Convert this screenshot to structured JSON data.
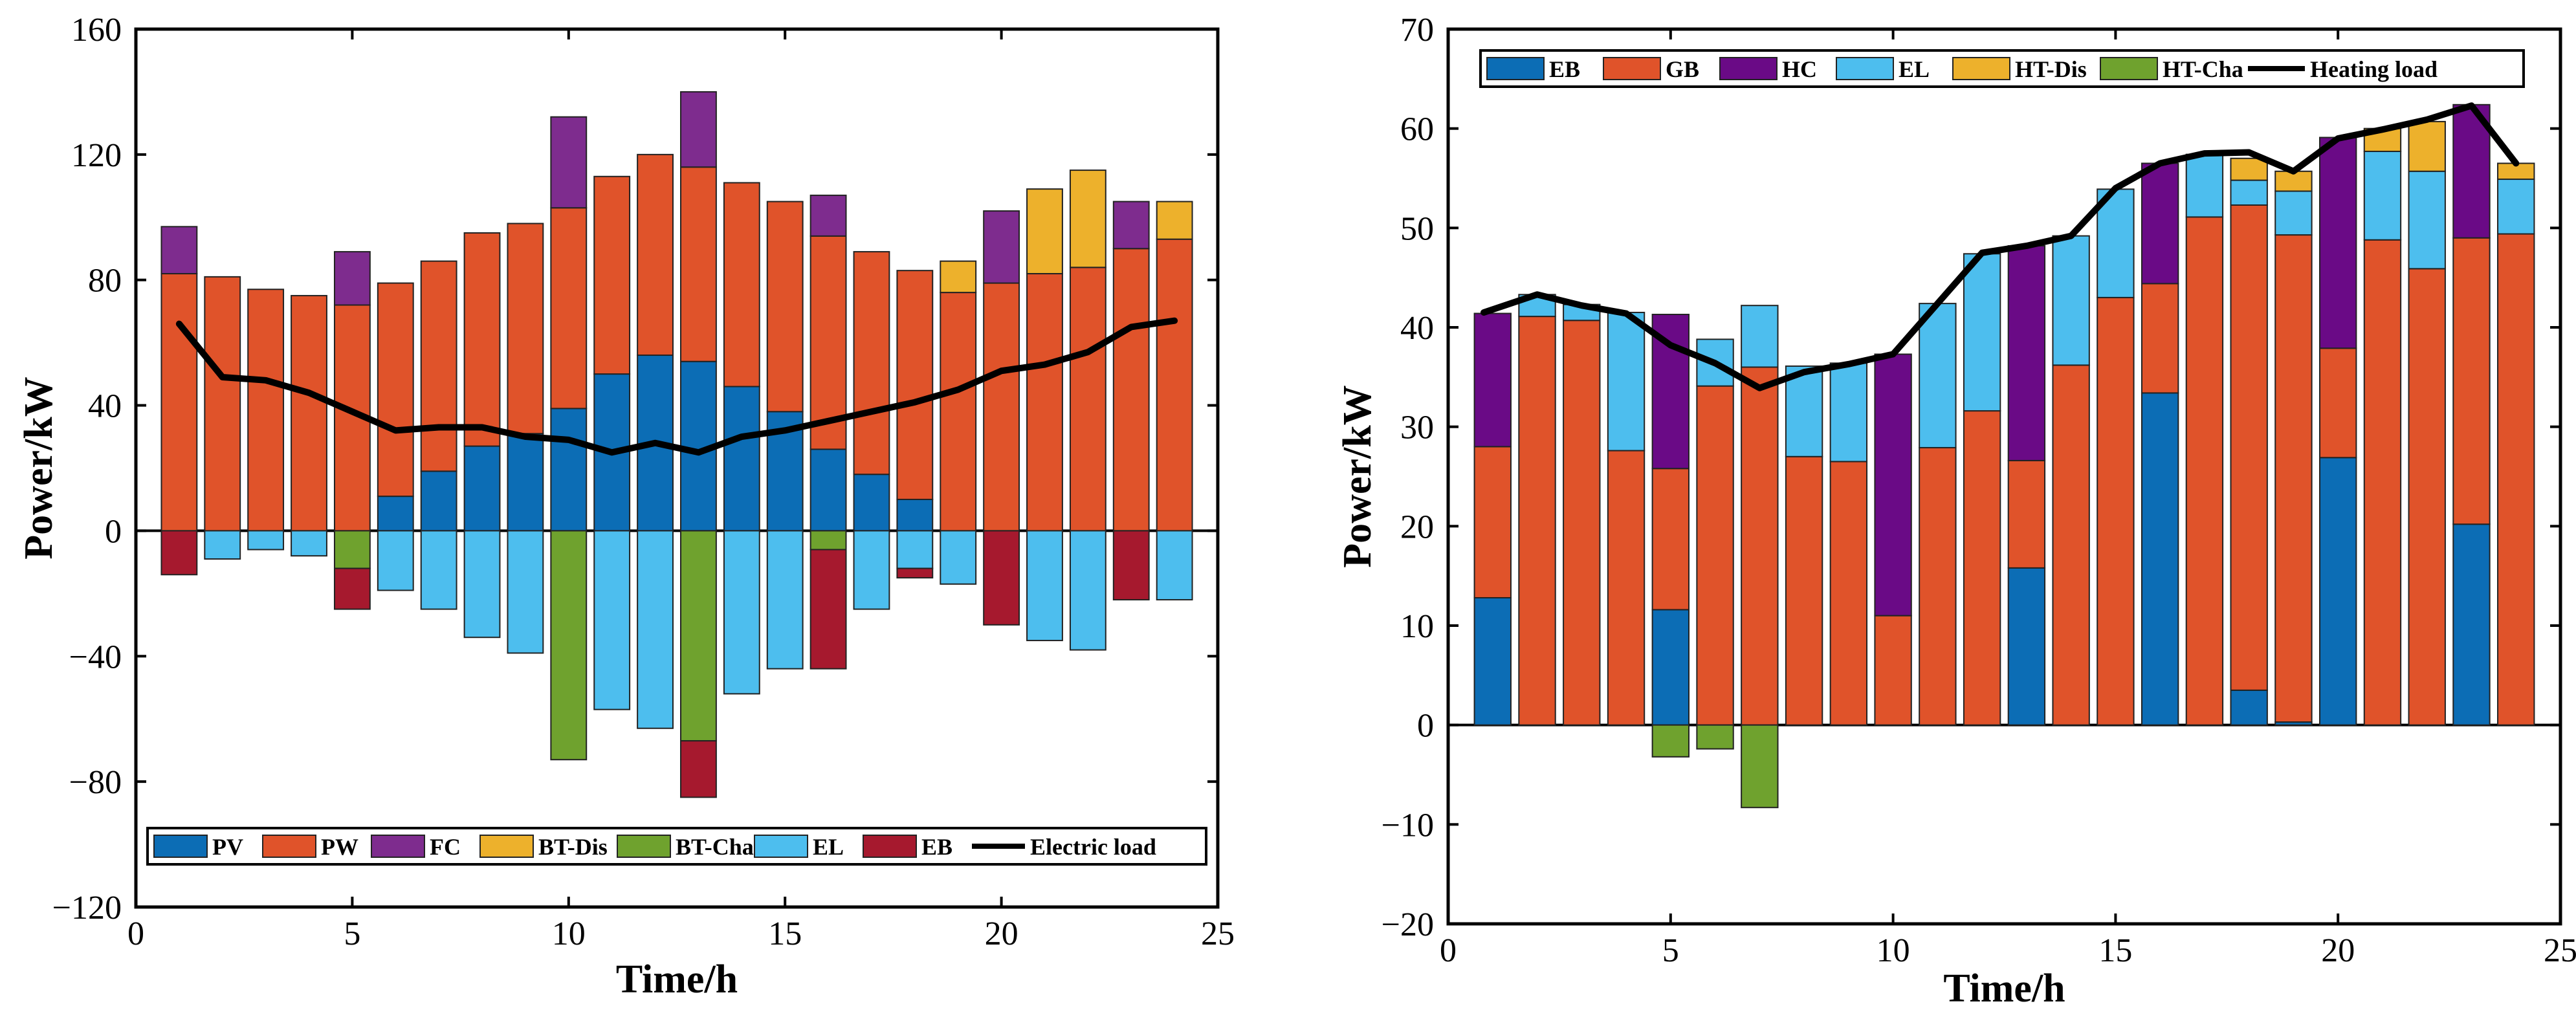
{
  "chart_data": [
    {
      "type": "bar",
      "stacked": true,
      "title": "",
      "xlabel": "Time/h",
      "ylabel": "Power/kW",
      "xlim": [
        0,
        25
      ],
      "ylim": [
        -120,
        160
      ],
      "xticks": [
        "0",
        "5",
        "10",
        "15",
        "20",
        "25"
      ],
      "yticks": [
        "−120",
        "−80",
        "−40",
        "0",
        "40",
        "80",
        "120",
        "160"
      ],
      "categories": [
        "1",
        "2",
        "3",
        "4",
        "5",
        "6",
        "7",
        "8",
        "9",
        "10",
        "11",
        "12",
        "13",
        "14",
        "15",
        "16",
        "17",
        "18",
        "19",
        "20",
        "21",
        "22",
        "23",
        "24"
      ],
      "legend_position": "bottom",
      "series": [
        {
          "name": "PV",
          "color": "#0C6DB5",
          "values": [
            0,
            0,
            0,
            0,
            0,
            11,
            19,
            27,
            31,
            39,
            50,
            56,
            54,
            46,
            38,
            26,
            18,
            10,
            0,
            0,
            0,
            0,
            0,
            0
          ]
        },
        {
          "name": "PW",
          "color": "#E0532A",
          "values": [
            82,
            81,
            77,
            75,
            72,
            68,
            67,
            68,
            67,
            64,
            63,
            64,
            62,
            65,
            67,
            68,
            71,
            73,
            76,
            79,
            82,
            84,
            90,
            93
          ]
        },
        {
          "name": "FC",
          "color": "#7E2C8E",
          "values": [
            15,
            0,
            0,
            0,
            17,
            0,
            0,
            0,
            0,
            29,
            0,
            0,
            24,
            0,
            0,
            13,
            0,
            0,
            0,
            23,
            0,
            0,
            15,
            0
          ]
        },
        {
          "name": "BT-Dis",
          "color": "#EDB12C",
          "values": [
            0,
            0,
            0,
            0,
            0,
            0,
            0,
            0,
            0,
            0,
            0,
            0,
            0,
            0,
            0,
            0,
            0,
            0,
            10,
            0,
            27,
            31,
            0,
            12
          ]
        },
        {
          "name": "BT-Cha",
          "color": "#6FA22E",
          "values": [
            0,
            0,
            0,
            0,
            -12,
            0,
            0,
            0,
            0,
            -73,
            0,
            0,
            -67,
            0,
            0,
            -6,
            0,
            0,
            0,
            0,
            0,
            0,
            0,
            0
          ]
        },
        {
          "name": "EL",
          "color": "#4DBEEE",
          "values": [
            0,
            -9,
            -6,
            -8,
            0,
            -19,
            -25,
            -34,
            -39,
            0,
            -57,
            -63,
            0,
            -52,
            -44,
            0,
            -25,
            -12,
            -17,
            0,
            -35,
            -38,
            0,
            -22
          ]
        },
        {
          "name": "EB",
          "color": "#A6192E",
          "values": [
            -14,
            0,
            0,
            0,
            -13,
            0,
            0,
            0,
            0,
            0,
            0,
            0,
            -18,
            0,
            0,
            -38,
            0,
            -3,
            0,
            -30,
            0,
            0,
            -22,
            0
          ]
        }
      ],
      "line": {
        "name": "Electric load",
        "color": "#000000",
        "x": [
          1,
          2,
          3,
          4,
          5,
          6,
          7,
          8,
          9,
          10,
          11,
          12,
          13,
          14,
          15,
          16,
          17,
          18,
          19,
          20,
          21,
          22,
          23,
          24
        ],
        "values": [
          66,
          49,
          48,
          44,
          38,
          32,
          33,
          33,
          30,
          29,
          25,
          28,
          25,
          30,
          32,
          35,
          38,
          41,
          45,
          51,
          53,
          57,
          65,
          67
        ]
      }
    },
    {
      "type": "bar",
      "stacked": true,
      "title": "",
      "xlabel": "Time/h",
      "ylabel": "Power/kW",
      "xlim": [
        0,
        25
      ],
      "ylim": [
        -20,
        70
      ],
      "xticks": [
        "0",
        "5",
        "10",
        "15",
        "20",
        "25"
      ],
      "yticks": [
        "−20",
        "−10",
        "0",
        "10",
        "20",
        "30",
        "40",
        "50",
        "60",
        "70"
      ],
      "categories": [
        "1",
        "2",
        "3",
        "4",
        "5",
        "6",
        "7",
        "8",
        "9",
        "10",
        "11",
        "12",
        "13",
        "14",
        "15",
        "16",
        "17",
        "18",
        "19",
        "20",
        "21",
        "22",
        "23",
        "24"
      ],
      "legend_position": "top",
      "series": [
        {
          "name": "EB",
          "color": "#0C6DB5",
          "values": [
            12.8,
            0,
            0,
            0,
            11.6,
            0,
            0,
            0,
            0,
            0,
            0,
            0,
            15.8,
            0,
            0,
            33.4,
            0,
            3.5,
            0.3,
            26.9,
            0,
            0,
            20.2,
            0
          ]
        },
        {
          "name": "GB",
          "color": "#E0532A",
          "values": [
            15.2,
            41.1,
            40.7,
            27.6,
            14.2,
            34.1,
            36,
            27,
            26.5,
            11,
            27.9,
            31.6,
            10.8,
            36.2,
            43,
            11,
            51.1,
            48.8,
            49,
            11,
            48.8,
            45.9,
            28.8,
            49.4
          ]
        },
        {
          "name": "HC",
          "color": "#6A0A86",
          "values": [
            13.4,
            0,
            0,
            0,
            15.5,
            0,
            0,
            0,
            0,
            26.3,
            0,
            0,
            21.6,
            0,
            0,
            12.1,
            0,
            0,
            0,
            21.2,
            0,
            0,
            13.4,
            0
          ]
        },
        {
          "name": "EL",
          "color": "#4DBEEE",
          "values": [
            0,
            2.2,
            1.6,
            13.9,
            0,
            4.7,
            6.2,
            9.1,
            9.9,
            0,
            14.5,
            15.8,
            0,
            13,
            10.9,
            0,
            6.3,
            2.5,
            4.4,
            0,
            8.9,
            9.8,
            0,
            5.5
          ]
        },
        {
          "name": "HT-Dis",
          "color": "#EDB12C",
          "values": [
            0,
            0,
            0,
            0,
            0,
            0,
            0,
            0,
            0,
            0,
            0,
            0,
            0,
            0,
            0,
            0,
            0,
            2.2,
            2,
            0,
            2.3,
            5,
            0,
            1.6
          ]
        },
        {
          "name": "HT-Cha",
          "color": "#6FA22E",
          "values": [
            0,
            0,
            0,
            0,
            -3.2,
            -2.4,
            -8.3,
            0,
            0,
            0,
            0,
            0,
            0,
            0,
            0,
            0,
            0,
            0,
            0,
            0,
            0,
            0,
            0,
            0
          ]
        }
      ],
      "line": {
        "name": "Heating load",
        "color": "#000000",
        "x": [
          0.8,
          2,
          3,
          4,
          5,
          6,
          7,
          8,
          9,
          10,
          11,
          12,
          13,
          14,
          15,
          16,
          17,
          18,
          19,
          20,
          21,
          22,
          23,
          24
        ],
        "values": [
          41.5,
          43.3,
          42.2,
          41.4,
          38.2,
          36.4,
          33.9,
          35.5,
          36.3,
          37.3,
          42.4,
          47.5,
          48.2,
          49.2,
          54,
          56.5,
          57.5,
          57.6,
          55.7,
          59,
          59.9,
          60.9,
          62.3,
          56.5
        ]
      }
    }
  ]
}
